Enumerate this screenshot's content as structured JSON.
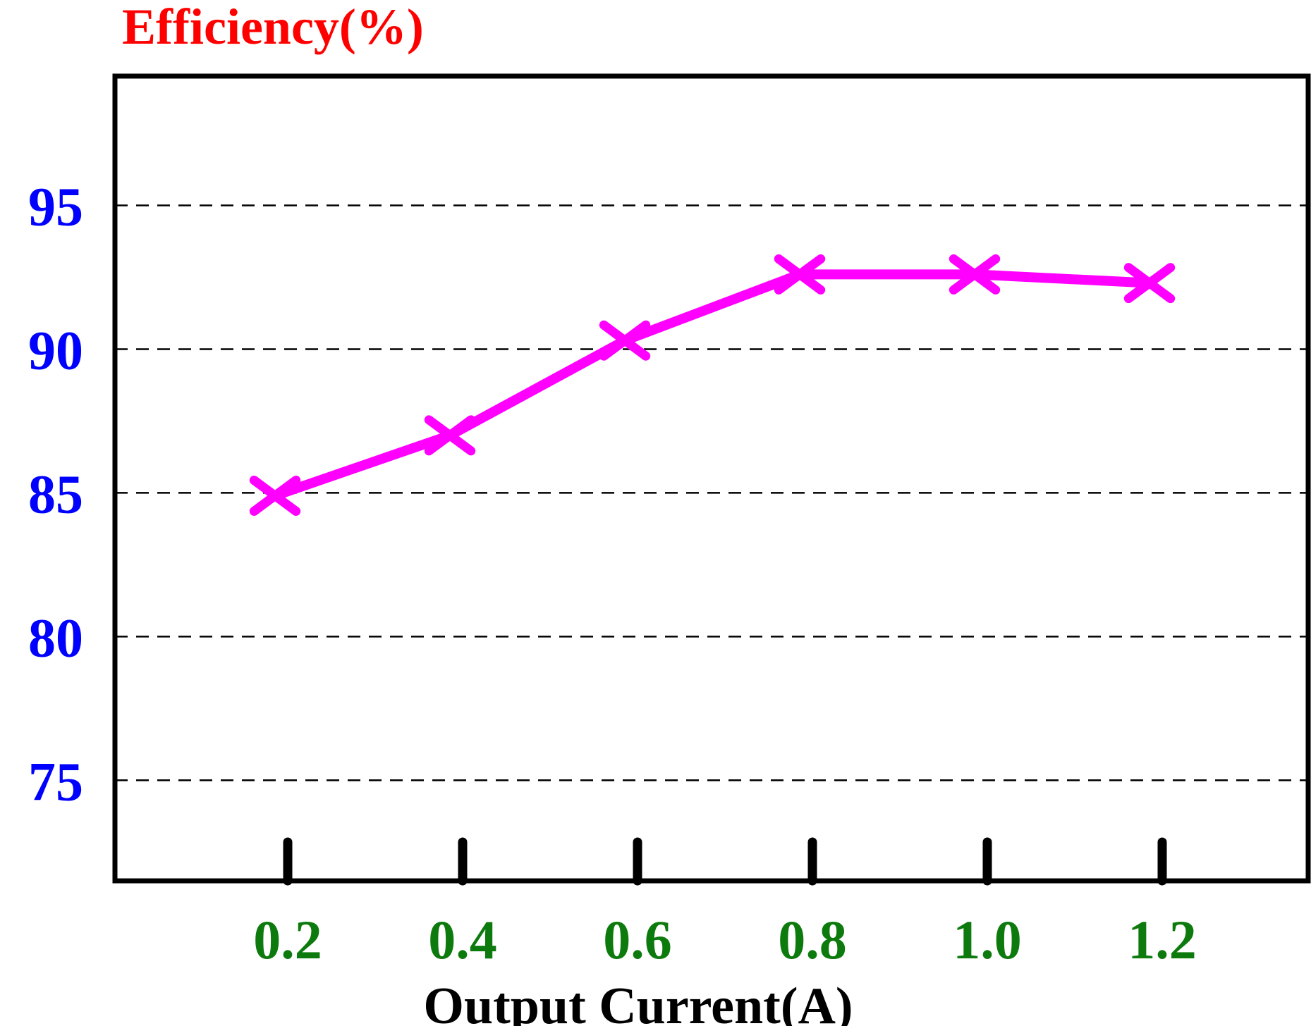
{
  "chart_data": {
    "type": "line",
    "title": "",
    "ylabel": "Efficiency(%)",
    "xlabel": "Output Current(A)",
    "x_ticks": [
      "0.2",
      "0.4",
      "0.6",
      "0.8",
      "1.0",
      "1.2"
    ],
    "y_ticks": [
      75,
      80,
      85,
      90,
      95
    ],
    "ylim": [
      71.5,
      99.5
    ],
    "grid": true,
    "series": [
      {
        "x": [
          0.2,
          0.4,
          0.6,
          0.8,
          1.0,
          1.2
        ],
        "y": [
          84.9,
          87.0,
          90.3,
          92.6,
          92.6,
          92.3
        ]
      }
    ],
    "colors": {
      "series": "#ff00ff",
      "ylabel": "#ff0000",
      "ytick": "#0000ff",
      "xtick": "#0d7a0d",
      "axis": "#000000"
    }
  }
}
